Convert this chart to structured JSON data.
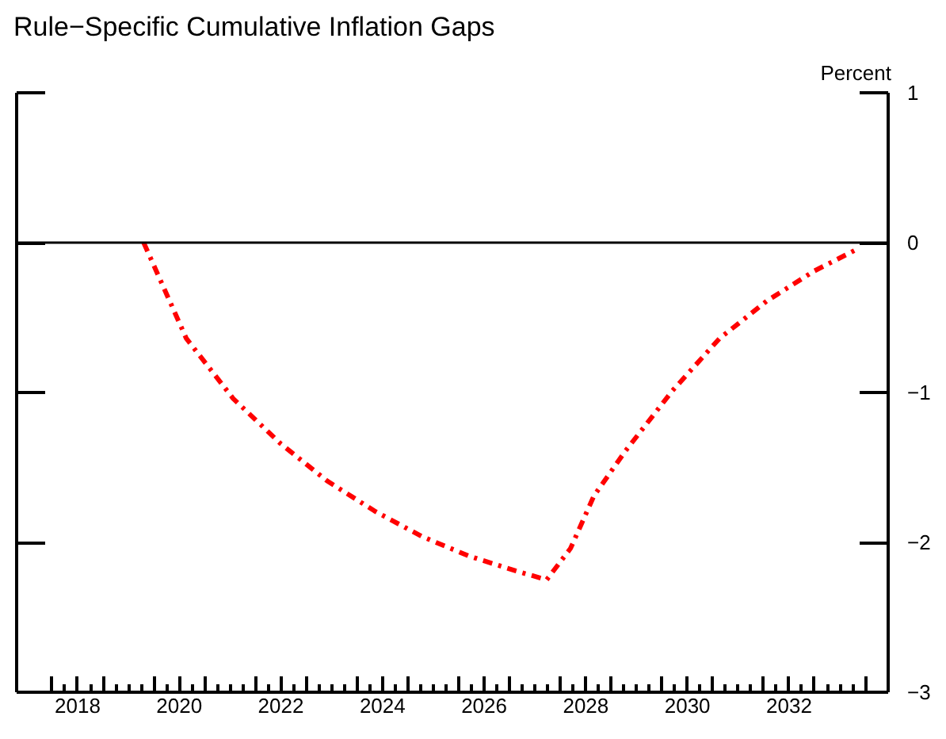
{
  "chart_data": {
    "type": "line",
    "title": "Rule−Specific Cumulative Inflation Gaps",
    "ylabel": "Percent",
    "x": [
      2019.8,
      2020.64,
      2021.56,
      2022.49,
      2023.41,
      2024.34,
      2025.27,
      2026.19,
      2027.12,
      2027.73,
      2028.2,
      2028.66,
      2029.28,
      2030.2,
      2031.13,
      2032.06,
      2032.99,
      2033.86
    ],
    "series": [
      {
        "color": "#ff0000",
        "values": [
          0,
          -0.64,
          -1.04,
          -1.34,
          -1.59,
          -1.79,
          -1.96,
          -2.09,
          -2.19,
          -2.25,
          -2.04,
          -1.69,
          -1.39,
          -0.99,
          -0.64,
          -0.39,
          -0.19,
          -0.04
        ]
      }
    ],
    "line_style": "dashdot",
    "marker": "none",
    "grid": false,
    "xlim": [
      2017.3,
      2034.45
    ],
    "xticks": [
      {
        "value": 2018,
        "label": null
      },
      {
        "value": 2018.5,
        "label": "2018"
      },
      {
        "value": 2019,
        "label": null
      },
      {
        "value": 2020,
        "label": null
      },
      {
        "value": 2020.5,
        "label": "2020"
      },
      {
        "value": 2021,
        "label": null
      },
      {
        "value": 2022,
        "label": null
      },
      {
        "value": 2022.5,
        "label": "2022"
      },
      {
        "value": 2023,
        "label": null
      },
      {
        "value": 2024,
        "label": null
      },
      {
        "value": 2024.5,
        "label": "2024"
      },
      {
        "value": 2025,
        "label": null
      },
      {
        "value": 2026,
        "label": null
      },
      {
        "value": 2026.5,
        "label": "2026"
      },
      {
        "value": 2027,
        "label": null
      },
      {
        "value": 2028,
        "label": null
      },
      {
        "value": 2028.5,
        "label": "2028"
      },
      {
        "value": 2029,
        "label": null
      },
      {
        "value": 2030,
        "label": null
      },
      {
        "value": 2030.5,
        "label": "2030"
      },
      {
        "value": 2031,
        "label": null
      },
      {
        "value": 2032,
        "label": null
      },
      {
        "value": 2032.5,
        "label": "2032"
      },
      {
        "value": 2033,
        "label": null
      },
      {
        "value": 2034,
        "label": null
      }
    ],
    "ylim": [
      -3,
      1
    ],
    "yticks": [
      1,
      0,
      {
        "value": -1,
        "label": "−1"
      },
      {
        "value": -2,
        "label": "−2"
      },
      {
        "value": -3,
        "label": "−3"
      }
    ],
    "ref_lines": [
      {
        "axis": "y",
        "value": 0,
        "color": "#000000"
      }
    ]
  }
}
